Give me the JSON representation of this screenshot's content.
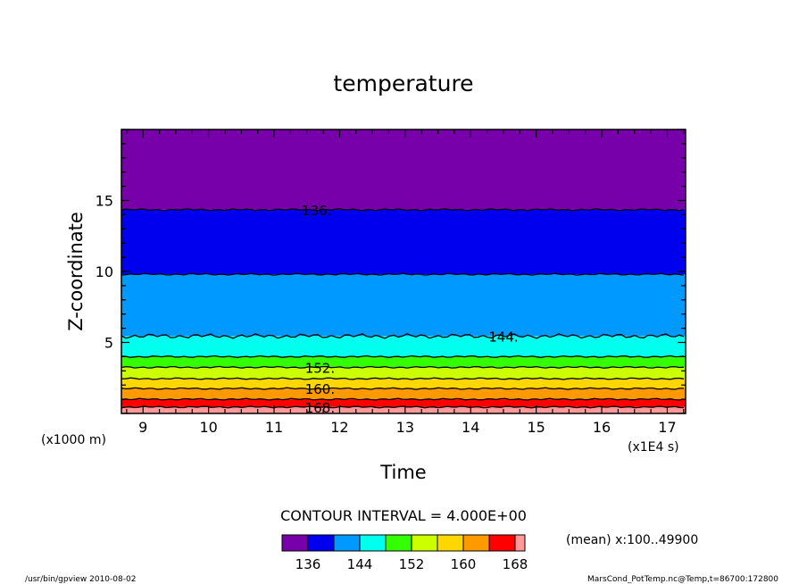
{
  "chart_data": {
    "type": "heatmap",
    "title": "temperature",
    "xlabel": "Time",
    "ylabel": "Z-coordinate",
    "x_unit": "(x1E4 s)",
    "y_unit": "(x1000 m)",
    "xlim": [
      8.67,
      17.28
    ],
    "ylim": [
      0,
      20
    ],
    "x_ticks": [
      9,
      10,
      11,
      12,
      13,
      14,
      15,
      16,
      17
    ],
    "y_ticks": [
      5,
      10,
      15
    ],
    "contour_interval_text": "CONTOUR INTERVAL = 4.000E+00",
    "mean_text": "(mean) x:100..49900",
    "bands": [
      {
        "lo": 168,
        "hi": 172,
        "ymin": 0.0,
        "ymax": 0.45,
        "color": "#ff9999"
      },
      {
        "lo": 164,
        "hi": 168,
        "ymin": 0.45,
        "ymax": 1.0,
        "color": "#ff0000"
      },
      {
        "lo": 160,
        "hi": 164,
        "ymin": 1.0,
        "ymax": 1.75,
        "color": "#ff9900"
      },
      {
        "lo": 156,
        "hi": 160,
        "ymin": 1.75,
        "ymax": 2.45,
        "color": "#ffd700"
      },
      {
        "lo": 152,
        "hi": 156,
        "ymin": 2.45,
        "ymax": 3.25,
        "color": "#ccff00"
      },
      {
        "lo": 148,
        "hi": 152,
        "ymin": 3.25,
        "ymax": 4.0,
        "color": "#33ff00"
      },
      {
        "lo": 144,
        "hi": 148,
        "ymin": 4.0,
        "ymax": 5.45,
        "color": "#00ffee"
      },
      {
        "lo": 140,
        "hi": 144,
        "ymin": 5.45,
        "ymax": 9.8,
        "color": "#0099ff"
      },
      {
        "lo": 136,
        "hi": 140,
        "ymin": 9.8,
        "ymax": 14.35,
        "color": "#0000ee"
      },
      {
        "lo": 132,
        "hi": 136,
        "ymin": 14.35,
        "ymax": 20.0,
        "color": "#7700aa"
      }
    ],
    "contour_lines": [
      {
        "level": 136,
        "y": 14.35,
        "label": "136.",
        "label_x": 11.65
      },
      {
        "level": 144,
        "y": 5.45,
        "label": "144.",
        "label_x": 14.5
      },
      {
        "level": 152,
        "y": 3.25,
        "label": "152.",
        "label_x": 11.7
      },
      {
        "level": 160,
        "y": 1.75,
        "label": "160.",
        "label_x": 11.7
      },
      {
        "level": 168,
        "y": 0.45,
        "label": "168.",
        "label_x": 11.7
      }
    ],
    "colorbar": {
      "colors": [
        "#7700aa",
        "#0000ee",
        "#0099ff",
        "#00ffee",
        "#33ff00",
        "#ccff00",
        "#ffd700",
        "#ff9900",
        "#ff0000",
        "#ff9999"
      ],
      "labels": [
        "136",
        "144",
        "152",
        "160",
        "168"
      ]
    }
  },
  "footer": {
    "left": "/usr/bin/gpview  2010-08-02",
    "right": "MarsCond_PotTemp.nc@Temp,t=86700:172800"
  }
}
